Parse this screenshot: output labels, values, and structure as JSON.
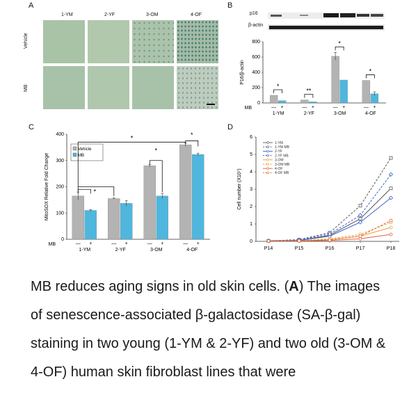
{
  "panelA": {
    "letter": "A",
    "columns": [
      "1-YM",
      "2-YF",
      "3-OM",
      "4-OF"
    ],
    "rows": [
      "Vehicle",
      "MB"
    ]
  },
  "panelB": {
    "letter": "B",
    "blot_labels": [
      "p16",
      "β-actin"
    ]
  },
  "panelC": {
    "letter": "C"
  },
  "panelD": {
    "letter": "D"
  },
  "chart_data": [
    {
      "type": "bar",
      "panel": "B",
      "ylabel": "P16/β-actin",
      "ylim": [
        0,
        800
      ],
      "yticks": [
        0,
        200,
        400,
        600,
        800
      ],
      "treatment_label": "MB",
      "treatment_signs": [
        "—",
        "+"
      ],
      "categories": [
        "1-YM",
        "2-YF",
        "3-OM",
        "4-OF"
      ],
      "series": [
        {
          "values": [
            100,
            40,
            610,
            295
          ],
          "errors": [
            0,
            0,
            50,
            0
          ],
          "color": "#b3b3b3"
        },
        {
          "values": [
            30,
            15,
            300,
            120
          ],
          "errors": [
            0,
            0,
            0,
            25
          ],
          "color": "#4fb6dd"
        }
      ],
      "significance": [
        "*",
        "**",
        "*",
        "*"
      ]
    },
    {
      "type": "bar",
      "panel": "C",
      "ylabel": "MitoSOX Relative Fold Change",
      "ylim": [
        0,
        400
      ],
      "yticks": [
        0,
        100,
        200,
        300,
        400
      ],
      "treatment_label": "MB",
      "treatment_signs": [
        "—",
        "+"
      ],
      "legend": [
        "Vehicle",
        "MB"
      ],
      "categories": [
        "1-YM",
        "2-YF",
        "3-OM",
        "4-OF"
      ],
      "series": [
        {
          "name": "Vehicle",
          "values": [
            165,
            155,
            280,
            360
          ],
          "errors": [
            15,
            3,
            4,
            6
          ],
          "color": "#b3b3b3"
        },
        {
          "name": "MB",
          "values": [
            110,
            137,
            165,
            323
          ],
          "errors": [
            3,
            10,
            10,
            5
          ],
          "color": "#4fb6dd"
        }
      ],
      "significance": [
        "*",
        "*",
        "*",
        "*",
        "*"
      ]
    },
    {
      "type": "line",
      "panel": "D",
      "ylabel": "Cell number (X10⁷)",
      "ylim": [
        0,
        6
      ],
      "yticks": [
        0,
        1,
        2,
        3,
        4,
        5,
        6
      ],
      "x": [
        "P14",
        "P15",
        "P16",
        "P17",
        "P18"
      ],
      "series": [
        {
          "name": "1-YM",
          "values": [
            0.03,
            0.05,
            0.35,
            1.3,
            3.05
          ],
          "color": "#555555",
          "dash": false,
          "marker": "square"
        },
        {
          "name": "1-YM MB",
          "values": [
            0.03,
            0.1,
            0.5,
            2.05,
            4.8
          ],
          "color": "#555555",
          "dash": true,
          "marker": "square"
        },
        {
          "name": "2-YF",
          "values": [
            0.03,
            0.05,
            0.3,
            1.1,
            2.5
          ],
          "color": "#3a5fcf",
          "dash": false,
          "marker": "diamond"
        },
        {
          "name": "2-YF MB",
          "values": [
            0.03,
            0.08,
            0.42,
            1.5,
            3.85
          ],
          "color": "#3a5fcf",
          "dash": true,
          "marker": "diamond"
        },
        {
          "name": "3-OM",
          "values": [
            0.02,
            0.03,
            0.1,
            0.3,
            0.8
          ],
          "color": "#e8a030",
          "dash": false,
          "marker": "circle"
        },
        {
          "name": "3-OM MB",
          "values": [
            0.02,
            0.04,
            0.15,
            0.4,
            1.1
          ],
          "color": "#e8a030",
          "dash": true,
          "marker": "circle"
        },
        {
          "name": "4-OF",
          "values": [
            0.02,
            0.02,
            0.05,
            0.15,
            0.4
          ],
          "color": "#e0603a",
          "dash": false,
          "marker": "circle"
        },
        {
          "name": "4-OF MB",
          "values": [
            0.02,
            0.03,
            0.08,
            0.3,
            1.2
          ],
          "color": "#e0603a",
          "dash": true,
          "marker": "circle"
        }
      ]
    }
  ],
  "caption": {
    "prefix": "MB reduces aging signs in old skin cells. (",
    "bold": "A",
    "suffix": ") The images of senescence-associated β-galactosidase (SA-β-gal) staining in two young (1-YM & 2-YF) and two old (3-OM & 4-OF) human skin fibroblast lines that were"
  }
}
